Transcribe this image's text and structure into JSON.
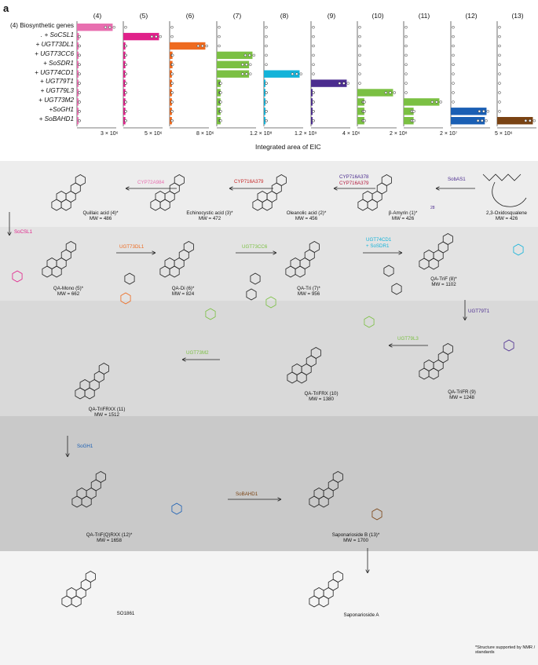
{
  "panel_a": {
    "letter": "a",
    "row_header": "(4) Biosynthetic genes",
    "column_headers": [
      "(4)",
      "(5)",
      "(6)",
      "(7)",
      "(8)",
      "(9)",
      "(10)",
      "(11)",
      "(12)",
      "(13)"
    ],
    "row_labels": [
      ". + SoCSL1",
      "+ UGT73DL1",
      "+ UGT73CC6",
      "+ SoSDR1",
      "+ UGT74CD1",
      "+ UGT79T1",
      "+ UGT79L3",
      "+ UGT73M2",
      "+SoGH1",
      "+ SoBAHD1"
    ],
    "tick_labels": [
      "3 × 10⁶",
      "5 × 10⁶",
      "",
      "8 × 10⁶",
      "1.2 × 10⁸",
      "1.2 × 10⁹",
      "1.2 × 10⁹",
      "4 × 10⁶",
      "2 × 10⁸",
      "2 × 10⁷",
      "5 × 10⁶"
    ],
    "x_axis_title": "Integrated area of EIC"
  },
  "chart_data": {
    "type": "bar",
    "xlabel": "Integrated area of EIC",
    "categories": [
      "(4) Biosynthetic genes",
      ". + SoCSL1",
      "+ UGT73DL1",
      "+ UGT73CC6",
      "+ SoSDR1",
      "+ UGT74CD1",
      "+ UGT79T1",
      "+ UGT79L3",
      "+ UGT73M2",
      "+SoGH1",
      "+ SoBAHD1"
    ],
    "series": [
      {
        "name": "(4)",
        "color": "#e86fb0",
        "values": [
          2700000.0,
          150000.0,
          100000.0,
          100000.0,
          100000.0,
          100000.0,
          100000.0,
          100000.0,
          100000.0,
          100000.0,
          100000.0
        ]
      },
      {
        "name": "(5)",
        "color": "#e0218a",
        "values": [
          0,
          5100000.0,
          300000.0,
          300000.0,
          300000.0,
          300000.0,
          300000.0,
          300000.0,
          300000.0,
          300000.0,
          300000.0
        ]
      },
      {
        "name": "(6)",
        "color": "#ee6a1f",
        "values": [
          0,
          0,
          6300000.0,
          500000.0,
          500000.0,
          400000.0,
          400000.0,
          400000.0,
          400000.0,
          400000.0,
          400000.0
        ]
      },
      {
        "name": "(7)",
        "color": "#7bc043",
        "values": [
          0,
          0,
          0,
          94000000.0,
          85000000.0,
          85000000.0,
          10000000.0,
          10000000.0,
          10000000.0,
          10000000.0,
          10000000.0
        ]
      },
      {
        "name": "(8)",
        "color": "#13b3d9",
        "values": [
          0,
          0,
          0,
          0,
          0,
          95000000.0,
          2000000.0,
          2000000.0,
          2000000.0,
          2000000.0,
          2000000.0
        ]
      },
      {
        "name": "(9)",
        "color": "#4b2c8f",
        "values": [
          0,
          0,
          0,
          0,
          0,
          0,
          1100000000.0,
          30000000.0,
          30000000.0,
          30000000.0,
          30000000.0
        ]
      },
      {
        "name": "(10)",
        "color": "#7bc043",
        "values": [
          0,
          0,
          0,
          0,
          0,
          0,
          0,
          4100000.0,
          800000.0,
          800000.0,
          800000.0
        ]
      },
      {
        "name": "(11)",
        "color": "#7bc043",
        "values": [
          0,
          0,
          0,
          0,
          0,
          0,
          0,
          0,
          180000000.0,
          50000000.0,
          50000000.0
        ]
      },
      {
        "name": "(12)",
        "color": "#1a5fb4",
        "values": [
          0,
          0,
          0,
          0,
          0,
          0,
          0,
          0,
          0,
          21000000.0,
          20000000.0
        ]
      },
      {
        "name": "(13)",
        "color": "#7a4313",
        "values": [
          0,
          0,
          0,
          0,
          0,
          0,
          0,
          0,
          0,
          0,
          3600000.0
        ]
      }
    ]
  },
  "panel_b": {
    "letter": "b",
    "compounds": [
      {
        "name": "2,3-Oxidosqualene",
        "mw": "MW = 426"
      },
      {
        "name": "β-Amyrin (1)*",
        "mw": "MW = 426"
      },
      {
        "name": "Oleanolic acid (2)*",
        "mw": "MW = 456"
      },
      {
        "name": "Echinocystic acid (3)*",
        "mw": "MW = 472"
      },
      {
        "name": "Quillaic acid (4)*",
        "mw": "MW = 486"
      },
      {
        "name": "QA-Mono (5)*",
        "mw": "MW = 662"
      },
      {
        "name": "QA-Di (6)*",
        "mw": "MW = 824"
      },
      {
        "name": "QA-Tri (7)*",
        "mw": "MW = 956"
      },
      {
        "name": "QA-TriF (8)*",
        "mw": "MW = 1102"
      },
      {
        "name": "QA-TriFR (9)",
        "mw": "MW = 1248"
      },
      {
        "name": "QA-TriFRX (10)",
        "mw": "MW = 1380"
      },
      {
        "name": "QA-TriFRXX (11)",
        "mw": "MW = 1512"
      },
      {
        "name": "QA-TriF(Q)RXX (12)*",
        "mw": "MW = 1658"
      },
      {
        "name": "Saponarioside B (13)*",
        "mw": "MW = 1700"
      },
      {
        "name": "SO1861",
        "mw": ""
      },
      {
        "name": "Saponarioside A",
        "mw": ""
      }
    ],
    "enzymes": {
      "sobas1": "SobAS1",
      "cyp_a378": "CYP716A378",
      "cyp_a379a": "CYP716A379",
      "cyp_a379b": "CYP716A379",
      "cyp72a984": "CYP72A984",
      "socsl1": "SoCSL1",
      "ugt73dl1": "UGT73DL1",
      "ugt73cc6": "UGT73CC6",
      "ugt74cd1": "UGT74CD1",
      "sosdr1": "+ SoSDR1",
      "ugt79t1": "UGT79T1",
      "ugt79l3": "UGT79L3",
      "ugt73m2": "UGT73M2",
      "sogh1": "SoGH1",
      "sobahd1": "SoBAHD1"
    },
    "position_label": "28",
    "footnote": "*Structure supported by NMR / standards"
  }
}
